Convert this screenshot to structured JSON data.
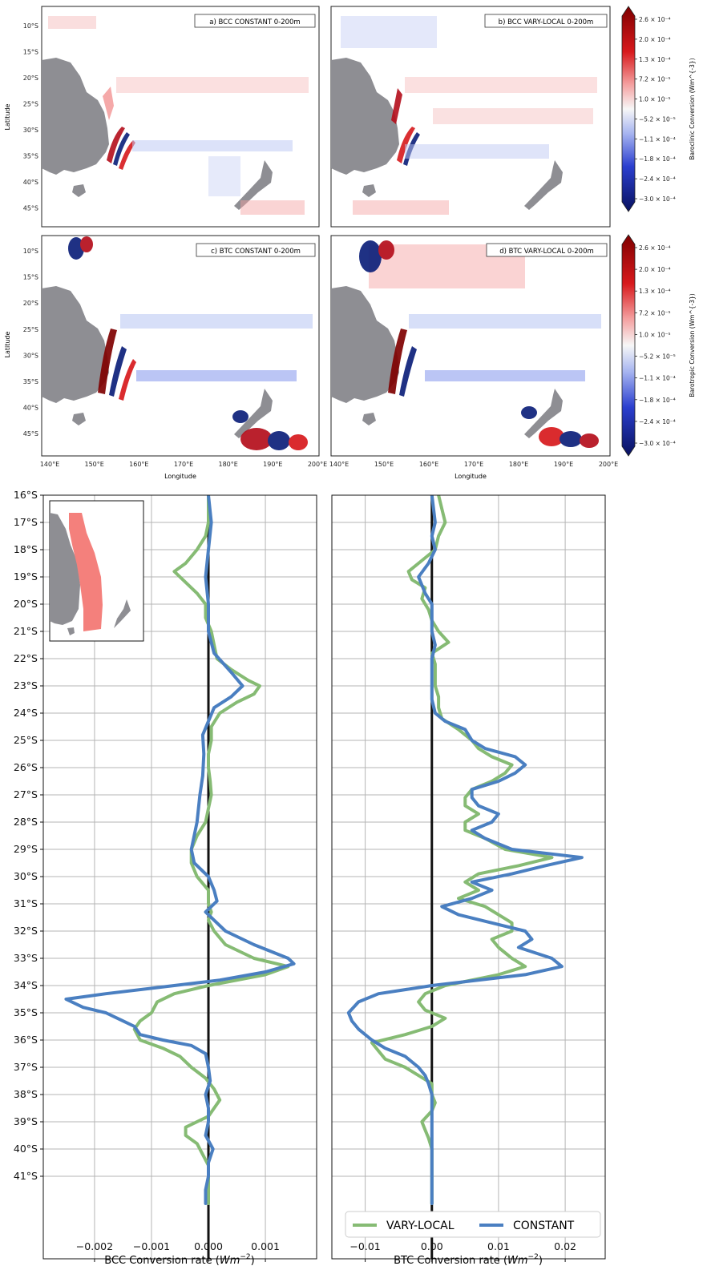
{
  "colors": {
    "land": "#8e8e93",
    "ocean": "#ffffff",
    "positive": "#b40e1b",
    "negative": "#0b1f7a",
    "constant": "#4a7fc1",
    "vary_local": "#86bb74",
    "region": "#f4807c"
  },
  "maps": {
    "ylabel": "Latitude",
    "xlabel": "Longitude",
    "lat_ticks": [
      "10°S",
      "15°S",
      "20°S",
      "25°S",
      "30°S",
      "35°S",
      "40°S",
      "45°S"
    ],
    "lon_ticks": [
      "140°E",
      "150°E",
      "160°E",
      "170°E",
      "180°E",
      "190°E",
      "200°E"
    ],
    "panels": [
      {
        "label": "a) BCC CONSTANT 0-200m",
        "kind": "bcc-constant"
      },
      {
        "label": "b) BCC VARY-LOCAL 0-200m",
        "kind": "bcc-vary"
      },
      {
        "label": "c) BTC CONSTANT 0-200m",
        "kind": "btc-constant"
      },
      {
        "label": "d) BTC VARY-LOCAL 0-200m",
        "kind": "btc-vary"
      }
    ],
    "colorbars": [
      {
        "label": "Baroclinic Conversion (Wm^{-3})",
        "ticks": [
          "2.6 × 10⁻⁴",
          "2.0 × 10⁻⁴",
          "1.3 × 10⁻⁴",
          "7.2 × 10⁻⁵",
          "1.0 × 10⁻⁵",
          "−5.2 × 10⁻⁵",
          "−1.1 × 10⁻⁴",
          "−1.8 × 10⁻⁴",
          "−2.4 × 10⁻⁴",
          "−3.0 × 10⁻⁴"
        ]
      },
      {
        "label": "Barotropic Conversion (Wm^{-3})",
        "ticks": [
          "2.6 × 10⁻⁴",
          "2.0 × 10⁻⁴",
          "1.3 × 10⁻⁴",
          "7.2 × 10⁻⁵",
          "1.0 × 10⁻⁵",
          "−5.2 × 10⁻⁵",
          "−1.1 × 10⁻⁴",
          "−1.8 × 10⁻⁴",
          "−2.4 × 10⁻⁴",
          "−3.0 × 10⁻⁴"
        ]
      }
    ]
  },
  "chart_data": [
    {
      "type": "line",
      "xlabel": "BCC Conversion rate (Wm^{-2})",
      "xlim": [
        -0.0029,
        0.0019
      ],
      "xticks": [
        -0.002,
        -0.001,
        0.0,
        0.001
      ],
      "xtick_labels": [
        "−0.002",
        "−0.001",
        "0.000",
        "0.001"
      ],
      "ylim": [
        16,
        42
      ],
      "ytick_labels": [
        "16°S",
        "17°S",
        "18°S",
        "19°S",
        "20°S",
        "21°S",
        "22°S",
        "23°S",
        "24°S",
        "25°S",
        "26°S",
        "27°S",
        "28°S",
        "29°S",
        "30°S",
        "31°S",
        "32°S",
        "33°S",
        "34°S",
        "35°S",
        "36°S",
        "37°S",
        "38°S",
        "39°S",
        "40°S",
        "41°S"
      ],
      "grid": true,
      "series": [
        {
          "name": "CONSTANT",
          "lat": [
            16,
            17,
            18,
            19,
            20,
            21,
            21.8,
            22.5,
            23,
            23.4,
            23.8,
            24.3,
            24.8,
            25.5,
            26.3,
            27,
            28,
            29,
            29.5,
            30,
            30.5,
            30.9,
            31.3,
            31.6,
            32,
            32.5,
            33,
            33.2,
            33.5,
            33.8,
            34,
            34.3,
            34.5,
            34.8,
            35,
            35.3,
            35.5,
            35.8,
            36,
            36.2,
            36.5,
            37,
            37.5,
            38,
            38.5,
            39,
            39.5,
            40,
            40.5,
            41,
            41.5,
            42
          ],
          "values": [
            0.0,
            5e-05,
            0.0,
            -5e-05,
            0.0,
            0.0,
            0.0001,
            0.0004,
            0.0006,
            0.0004,
            0.0001,
            0.0,
            -0.0001,
            -8e-05,
            -0.0001,
            -0.00015,
            -0.0002,
            -0.0003,
            -0.00025,
            0.0,
            0.0001,
            0.00015,
            -5e-05,
            0.0001,
            0.0003,
            0.0008,
            0.0014,
            0.0015,
            0.001,
            0.0002,
            -0.0006,
            -0.0018,
            -0.0025,
            -0.0022,
            -0.0018,
            -0.0015,
            -0.0013,
            -0.0012,
            -0.0008,
            -0.0003,
            -5e-05,
            0.0,
            3e-05,
            -5e-05,
            0.0,
            0.0,
            -5e-05,
            8e-05,
            0.0,
            0.0,
            -5e-05,
            -5e-05
          ]
        },
        {
          "name": "VARY-LOCAL",
          "lat": [
            16,
            17,
            17.5,
            18,
            18.5,
            18.8,
            19.2,
            19.6,
            20,
            20.5,
            21,
            21.5,
            22,
            22.4,
            22.8,
            23,
            23.3,
            23.6,
            24,
            24.5,
            25,
            25.5,
            26,
            26.5,
            27,
            27.5,
            28,
            28.5,
            29,
            29.5,
            30,
            30.3,
            30.5,
            30.8,
            31,
            31.3,
            31.6,
            32,
            32.5,
            33,
            33.3,
            33.6,
            34,
            34.3,
            34.6,
            35,
            35.3,
            35.6,
            36,
            36.3,
            36.6,
            37,
            37.4,
            37.8,
            38.2,
            38.5,
            38.8,
            39.2,
            39.5,
            39.8,
            40.2,
            40.6,
            41,
            41.5,
            42
          ],
          "values": [
            0.0,
            0.0,
            -5e-05,
            -0.0002,
            -0.0004,
            -0.0006,
            -0.0004,
            -0.0002,
            -5e-05,
            -5e-05,
            5e-05,
            0.0001,
            0.00015,
            0.0004,
            0.0007,
            0.0009,
            0.0008,
            0.0005,
            0.0002,
            5e-05,
            5e-05,
            0.0,
            0.0,
            3e-05,
            5e-05,
            0.0,
            -5e-05,
            -0.0002,
            -0.0003,
            -0.0003,
            -0.0002,
            -8e-05,
            0.0,
            0.0,
            0.0,
            5e-05,
            0.0,
            0.0001,
            0.0003,
            0.0008,
            0.0014,
            0.001,
            0.0,
            -0.0006,
            -0.0009,
            -0.001,
            -0.0012,
            -0.0013,
            -0.0012,
            -0.0008,
            -0.0005,
            -0.0003,
            -5e-05,
            0.0001,
            0.0002,
            0.0001,
            0.0,
            -0.0004,
            -0.0004,
            -0.0002,
            -0.0001,
            0.0,
            0.0,
            0.0,
            0.0
          ]
        }
      ],
      "inset": {
        "region": "East Australian coast band"
      }
    },
    {
      "type": "line",
      "xlabel": "BTC Conversion rate (Wm^{-2})",
      "xlim": [
        -0.015,
        0.026
      ],
      "xticks": [
        -0.01,
        0.0,
        0.01,
        0.02
      ],
      "xtick_labels": [
        "−0.01",
        "0.00",
        "0.01",
        "0.02"
      ],
      "ylim": [
        16,
        42
      ],
      "grid": true,
      "legend": {
        "placement": "lower-right",
        "entries": [
          "VARY-LOCAL",
          "CONSTANT"
        ]
      },
      "series": [
        {
          "name": "CONSTANT",
          "lat": [
            16,
            17,
            17.5,
            18,
            18.5,
            19,
            19.3,
            19.6,
            20,
            20.5,
            21,
            21.5,
            22,
            22.5,
            23,
            23.5,
            24,
            24.3,
            24.6,
            25,
            25.3,
            25.6,
            25.9,
            26.2,
            26.5,
            26.8,
            27.1,
            27.4,
            27.7,
            28,
            28.3,
            28.6,
            29,
            29.3,
            29.6,
            29.9,
            30.2,
            30.5,
            30.8,
            31.1,
            31.4,
            31.7,
            32,
            32.3,
            32.6,
            33,
            33.3,
            33.6,
            34,
            34.3,
            34.6,
            35,
            35.3,
            35.6,
            36,
            36.3,
            36.6,
            37,
            37.3,
            37.6,
            38,
            38.5,
            39,
            39.5,
            40,
            40.5,
            41,
            41.5,
            42
          ],
          "values": [
            0.0,
            0.0005,
            0.0,
            0.0005,
            -0.0005,
            -0.002,
            -0.0015,
            -0.001,
            0.0,
            0.0,
            0.0,
            0.0005,
            0.0,
            0.0,
            0.0,
            0.0,
            0.0005,
            0.002,
            0.005,
            0.006,
            0.008,
            0.0125,
            0.014,
            0.0125,
            0.01,
            0.006,
            0.006,
            0.007,
            0.01,
            0.009,
            0.006,
            0.008,
            0.012,
            0.0225,
            0.017,
            0.012,
            0.006,
            0.009,
            0.006,
            0.0015,
            0.004,
            0.009,
            0.014,
            0.015,
            0.013,
            0.018,
            0.0195,
            0.014,
            0.0,
            -0.008,
            -0.011,
            -0.0125,
            -0.012,
            -0.011,
            -0.009,
            -0.007,
            -0.004,
            -0.002,
            -0.001,
            -0.0005,
            0.0,
            0.0,
            0.0,
            0.0,
            0.0,
            0.0,
            0.0,
            0.0,
            0.0
          ]
        },
        {
          "name": "VARY-LOCAL",
          "lat": [
            16,
            16.5,
            17,
            17.5,
            18,
            18.5,
            18.8,
            19.1,
            19.4,
            19.8,
            20.2,
            20.6,
            21,
            21.4,
            21.8,
            22.2,
            22.6,
            23,
            23.4,
            23.8,
            24.2,
            24.6,
            25,
            25.3,
            25.6,
            25.9,
            26.2,
            26.5,
            26.8,
            27.1,
            27.4,
            27.7,
            28,
            28.3,
            28.6,
            29,
            29.3,
            29.6,
            29.9,
            30.2,
            30.5,
            30.8,
            31.1,
            31.4,
            31.7,
            32,
            32.3,
            32.6,
            33,
            33.3,
            33.6,
            34,
            34.3,
            34.6,
            34.9,
            35.2,
            35.5,
            35.8,
            36.1,
            36.4,
            36.7,
            37,
            37.3,
            37.6,
            38,
            38.3,
            38.6,
            39,
            39.3,
            39.6,
            40,
            40.4,
            40.8,
            41.2,
            41.6,
            42
          ],
          "values": [
            0.001,
            0.0015,
            0.002,
            0.001,
            0.0005,
            -0.002,
            -0.0035,
            -0.003,
            -0.001,
            -0.0015,
            -0.0005,
            0.0,
            0.001,
            0.0025,
            0.0,
            0.0005,
            0.0005,
            0.0005,
            0.001,
            0.001,
            0.0015,
            0.004,
            0.006,
            0.007,
            0.009,
            0.012,
            0.011,
            0.009,
            0.006,
            0.005,
            0.005,
            0.007,
            0.005,
            0.005,
            0.008,
            0.011,
            0.018,
            0.013,
            0.007,
            0.005,
            0.007,
            0.004,
            0.008,
            0.01,
            0.012,
            0.012,
            0.009,
            0.01,
            0.012,
            0.014,
            0.01,
            0.002,
            -0.001,
            -0.002,
            -0.001,
            0.002,
            0.0,
            -0.004,
            -0.009,
            -0.008,
            -0.007,
            -0.004,
            -0.002,
            0.0,
            0.0,
            0.0005,
            0.0,
            -0.0015,
            -0.001,
            -0.0005,
            0.0,
            0.0,
            0.0,
            0.0,
            0.0,
            0.0
          ]
        }
      ]
    }
  ]
}
